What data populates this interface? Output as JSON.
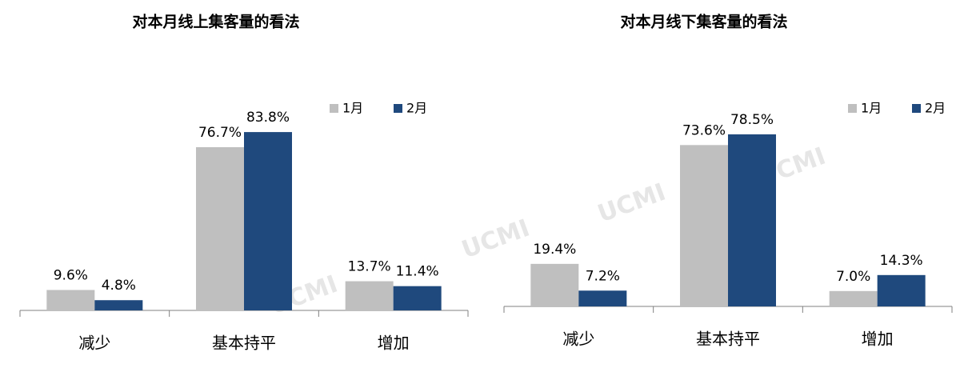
{
  "watermark": "UCMI",
  "chart_data": [
    {
      "type": "bar",
      "title": "对本月线上集客量的看法",
      "legend": "top-right",
      "categories": [
        "减少",
        "基本持平",
        "增加"
      ],
      "series": [
        {
          "name": "1月",
          "color": "#bfbfbf",
          "values": [
            9.6,
            76.7,
            13.7
          ],
          "value_labels": [
            "9.6%",
            "76.7%",
            "13.7%"
          ]
        },
        {
          "name": "2月",
          "color": "#1f497d",
          "values": [
            4.8,
            83.8,
            11.4
          ],
          "value_labels": [
            "4.8%",
            "83.8%",
            "11.4%"
          ]
        }
      ]
    },
    {
      "type": "bar",
      "title": "对本月线下集客量的看法",
      "legend": "top-right",
      "categories": [
        "减少",
        "基本持平",
        "增加"
      ],
      "series": [
        {
          "name": "1月",
          "color": "#bfbfbf",
          "values": [
            19.4,
            73.6,
            7.0
          ],
          "value_labels": [
            "19.4%",
            "73.6%",
            "7.0%"
          ]
        },
        {
          "name": "2月",
          "color": "#1f497d",
          "values": [
            7.2,
            78.5,
            14.3
          ],
          "value_labels": [
            "7.2%",
            "78.5%",
            "14.3%"
          ]
        }
      ]
    }
  ]
}
